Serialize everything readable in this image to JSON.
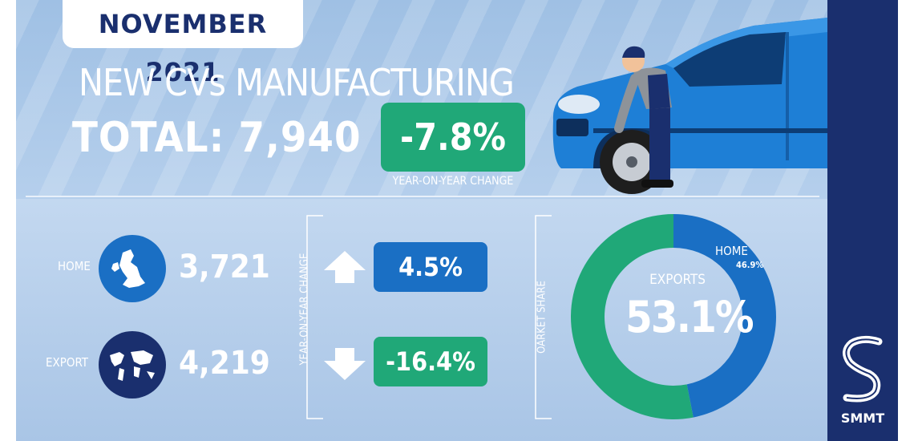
{
  "header": {
    "date_badge": "NOVEMBER 2021",
    "headline": "NEW CVs MANUFACTURING",
    "total_label": "TOTAL: 7,940",
    "change_value": "-7.8%",
    "change_caption": "YEAR-ON-YEAR CHANGE"
  },
  "rows": {
    "home": {
      "label": "HOME",
      "value": "3,721",
      "change": "4.5%",
      "direction": "up"
    },
    "export": {
      "label": "EXPORT",
      "value": "4,219",
      "change": "-16.4%",
      "direction": "down"
    }
  },
  "yoy_label": "YEAR-ON-YEAR CHANGE",
  "share_label": "OARKET SHARE",
  "donut": {
    "center_label": "EXPORTS",
    "center_value": "53.1%",
    "home_label": "HOME",
    "home_value": "46.9%"
  },
  "brand": {
    "logo_text": "SMMT"
  },
  "colors": {
    "background": "#a9c5e6",
    "green": "#20a878",
    "blue": "#1a6fc4",
    "navy": "#1a2f6e",
    "white": "#ffffff"
  },
  "chart_data": {
    "type": "pie",
    "categories": [
      "EXPORTS",
      "HOME"
    ],
    "values": [
      53.1,
      46.9
    ],
    "colors": [
      "#20a878",
      "#1a6fc4"
    ]
  }
}
